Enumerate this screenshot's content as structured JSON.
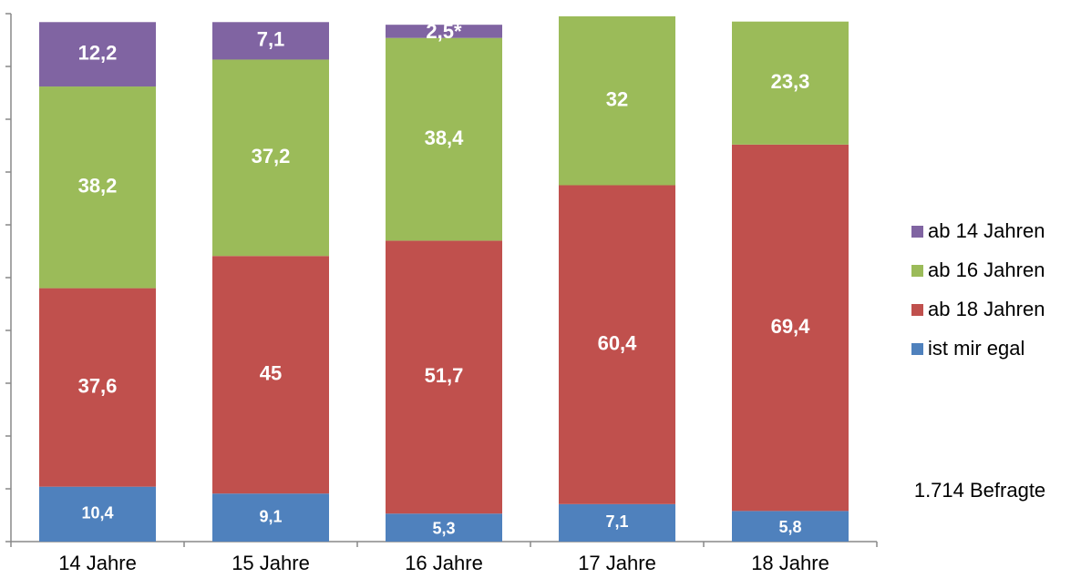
{
  "chart_data": {
    "type": "stacked_bar",
    "categories": [
      "14 Jahre",
      "15 Jahre",
      "16 Jahre",
      "17 Jahre",
      "18 Jahre"
    ],
    "series": [
      {
        "name": "ist mir egal",
        "color": "#4f81bd",
        "values": [
          10.4,
          9.1,
          5.3,
          7.1,
          5.8
        ],
        "value_labels": [
          "10,4",
          "9,1",
          "5,3",
          "7,1",
          "5,8"
        ]
      },
      {
        "name": "ab 18 Jahren",
        "color": "#c0504d",
        "values": [
          37.6,
          45,
          51.7,
          60.4,
          69.4
        ],
        "value_labels": [
          "37,6",
          "45",
          "51,7",
          "60,4",
          "69,4"
        ]
      },
      {
        "name": "ab 16 Jahren",
        "color": "#9bbb59",
        "values": [
          38.2,
          37.2,
          38.4,
          32,
          23.3
        ],
        "value_labels": [
          "38,2",
          "37,2",
          "38,4",
          "32",
          "23,3"
        ]
      },
      {
        "name": "ab 14 Jahren",
        "color": "#8064a2",
        "values": [
          12.2,
          7.1,
          2.5,
          null,
          null
        ],
        "value_labels": [
          "12,2",
          "7,1",
          "2,5*",
          null,
          null
        ]
      }
    ],
    "ylim": [
      0,
      100
    ],
    "yticks": [
      0,
      10,
      20,
      30,
      40,
      50,
      60,
      70,
      80,
      90,
      100
    ],
    "legend": "right",
    "annotation": "1.714 Befragte"
  }
}
